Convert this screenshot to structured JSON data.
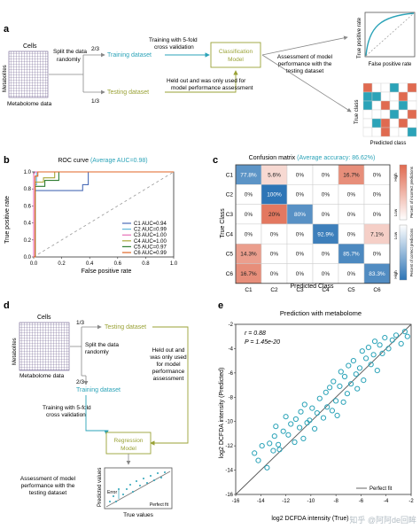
{
  "panel_letters": {
    "a": "a",
    "b": "b",
    "c": "c",
    "d": "d",
    "e": "e"
  },
  "panel_a": {
    "cells_label": "Cells",
    "metabolites_label": "Metabolites",
    "metabolome_label": "Metabolome data",
    "split_label_1": "Split the data",
    "split_label_2": "randomly",
    "frac_train": "2/3",
    "frac_test": "1/3",
    "training_dataset": "Training dataset",
    "testing_dataset": "Testing dataset",
    "cv_label_1": "Training with 5-fold",
    "cv_label_2": "cross validation",
    "model_label_1": "Classification",
    "model_label_2": "Model",
    "heldout_label_1": "Held out and was only used for",
    "heldout_label_2": "model performance assessment",
    "assess_label_1": "Assessment of model",
    "assess_label_2": "performance with the",
    "assess_label_3": "testing dataset",
    "roc_icon_ylabel": "True positive rate",
    "roc_icon_xlabel": "False positive rate",
    "cm_icon_ylabel": "True class",
    "cm_icon_xlabel": "Predicted class"
  },
  "panel_b": {
    "title_prefix": "ROC curve",
    "title_highlight": "(Average AUC=0.98)",
    "xlabel": "False positive rate",
    "ylabel": "True positive rate",
    "xticks": [
      "0.0",
      "0.2",
      "0.4",
      "0.6",
      "0.8",
      "1.0"
    ],
    "yticks": [
      "0.0",
      "0.2",
      "0.4",
      "0.6",
      "0.8",
      "1.0"
    ],
    "legend": [
      "C1 AUC=0.94",
      "C2 AUC=0.99",
      "C3 AUC=1.00",
      "C4 AUC=1.00",
      "C5 AUC=0.97",
      "C6 AUC=0.99"
    ]
  },
  "panel_c": {
    "title_prefix": "Confusion matrix",
    "title_highlight": "(Average accuracy: 86.62%)",
    "xlabel": "Predicted Class",
    "ylabel": "True Class",
    "classes": [
      "C1",
      "C2",
      "C3",
      "C4",
      "C5",
      "C6"
    ],
    "colorbar_high": "High",
    "colorbar_low": "Low",
    "colorbar_top_label": "Percent of incorrect predictions",
    "colorbar_bottom_label": "Percent of correct predictions"
  },
  "panel_d": {
    "cells_label": "Cells",
    "metabolites_label": "Metabolites",
    "metabolome_label": "Metabolome data",
    "frac_test": "1/3",
    "frac_train": "2/3",
    "split_label_1": "Split the data",
    "split_label_2": "randomly",
    "testing_dataset": "Testing dataset",
    "training_dataset": "Training dataset",
    "heldout_label_1": "Held out and",
    "heldout_label_2": "was only used",
    "heldout_label_3": "for model",
    "heldout_label_4": "performance",
    "heldout_label_5": "assessment",
    "cv_label_1": "Training with 5-fold",
    "cv_label_2": "cross validation",
    "model_label_1": "Regression",
    "model_label_2": "Model",
    "assess_label_1": "Assessment of model",
    "assess_label_2": "performance with the",
    "assess_label_3": "testing dataset",
    "icon_ylabel": "Predicted values",
    "icon_xlabel": "True values",
    "icon_error": "Error",
    "icon_perfect": "Perfect fit"
  },
  "panel_e": {
    "title": "Prediction with metabolome",
    "r_label": "r = 0.88",
    "p_label": "P = 1.45e-20",
    "xlabel": "log2 DCFDA intensity (True)",
    "ylabel": "log2 DCFDA intensity (Predicted)",
    "legend": "Perfect fit",
    "watermark": "知乎 @阿阿de回眸",
    "xticks": [
      "-16",
      "-14",
      "-12",
      "-10",
      "-8",
      "-6",
      "-4",
      "-2"
    ],
    "yticks": [
      "-16",
      "-14",
      "-12",
      "-10",
      "-8",
      "-6",
      "-4",
      "-2"
    ]
  },
  "colors": {
    "teal": "#2ba3b8",
    "olive": "#9aa236",
    "c1": "#4b6cb7",
    "c2": "#63b7d8",
    "c3": "#e66fb8",
    "c4": "#a8a838",
    "c5": "#2e7d32",
    "c6": "#e06626",
    "cm_red": "#e06a50",
    "cm_blue": "#2e75b6"
  },
  "chart_data": [
    {
      "type": "line",
      "title": "ROC curve (Average AUC=0.98)",
      "xlabel": "False positive rate",
      "ylabel": "True positive rate",
      "xlim": [
        0,
        1
      ],
      "ylim": [
        0,
        1
      ],
      "legend_position": "bottom-right",
      "series": [
        {
          "name": "C1 AUC=0.94",
          "color": "#4b6cb7",
          "x": [
            0,
            0.01,
            0.01,
            0.35,
            0.35,
            0.39,
            0.39,
            1.0
          ],
          "y": [
            0,
            0,
            0.78,
            0.78,
            0.85,
            0.85,
            1.0,
            1.0
          ]
        },
        {
          "name": "C2 AUC=0.99",
          "color": "#63b7d8",
          "x": [
            0,
            0.01,
            0.01,
            0.02,
            0.02,
            1.0
          ],
          "y": [
            0,
            0,
            0.85,
            0.85,
            1.0,
            1.0
          ]
        },
        {
          "name": "C3 AUC=1.00",
          "color": "#e66fb8",
          "x": [
            0,
            0,
            0.01,
            1.0
          ],
          "y": [
            0,
            0.97,
            1.0,
            1.0
          ]
        },
        {
          "name": "C4 AUC=1.00",
          "color": "#a8a838",
          "x": [
            0,
            0.01,
            0.01,
            0.07,
            0.07,
            0.15,
            0.15,
            1.0
          ],
          "y": [
            0,
            0,
            0.88,
            0.88,
            0.93,
            0.93,
            1.0,
            1.0
          ]
        },
        {
          "name": "C5 AUC=0.97",
          "color": "#2e7d32",
          "x": [
            0,
            0.01,
            0.01,
            0.08,
            0.08,
            0.18,
            0.18,
            1.0
          ],
          "y": [
            0,
            0,
            0.83,
            0.83,
            0.9,
            0.9,
            1.0,
            1.0
          ]
        },
        {
          "name": "C6 AUC=0.99",
          "color": "#e06626",
          "x": [
            0,
            0.01,
            0.01,
            0.03,
            0.03,
            1.0
          ],
          "y": [
            0,
            0,
            0.95,
            0.95,
            1.0,
            1.0
          ]
        }
      ]
    },
    {
      "type": "heatmap",
      "title": "Confusion matrix (Average accuracy: 86.62%)",
      "xlabel": "Predicted Class",
      "ylabel": "True Class",
      "rows": [
        "C1",
        "C2",
        "C3",
        "C4",
        "C5",
        "C6"
      ],
      "cols": [
        "C1",
        "C2",
        "C3",
        "C4",
        "C5",
        "C6"
      ],
      "values": [
        [
          "77.8%",
          "5.6%",
          "0%",
          "0%",
          "16.7%",
          "0%"
        ],
        [
          "0%",
          "100%",
          "0%",
          "0%",
          "0%",
          "0%"
        ],
        [
          "0%",
          "20%",
          "80%",
          "0%",
          "0%",
          "0%"
        ],
        [
          "0%",
          "0%",
          "0%",
          "92.9%",
          "0%",
          "7.1%"
        ],
        [
          "14.3%",
          "0%",
          "0%",
          "0%",
          "85.7%",
          "0%"
        ],
        [
          "16.7%",
          "0%",
          "0%",
          "0%",
          "0%",
          "83.3%"
        ]
      ],
      "fill_pct": [
        [
          77.8,
          5.6,
          0,
          0,
          16.7,
          0
        ],
        [
          0,
          100,
          0,
          0,
          0,
          0
        ],
        [
          0,
          20,
          80,
          0,
          0,
          0
        ],
        [
          0,
          0,
          0,
          92.9,
          0,
          7.1
        ],
        [
          14.3,
          0,
          0,
          0,
          85.7,
          0
        ],
        [
          16.7,
          0,
          0,
          0,
          0,
          83.3
        ]
      ]
    },
    {
      "type": "scatter",
      "title": "Prediction with metabolome",
      "xlabel": "log2 DCFDA intensity (True)",
      "ylabel": "log2 DCFDA intensity (Predicted)",
      "xlim": [
        -16,
        -2
      ],
      "ylim": [
        -16,
        -2
      ],
      "legend_position": "bottom-right",
      "series": [
        {
          "name": "Perfect fit",
          "type": "line",
          "x": [
            -16,
            -2
          ],
          "y": [
            -16,
            -2
          ]
        },
        {
          "name": "points",
          "x": [
            -14.5,
            -14.2,
            -13.9,
            -13.5,
            -13.3,
            -13.0,
            -12.9,
            -12.8,
            -12.6,
            -12.5,
            -12.2,
            -12.0,
            -11.8,
            -11.6,
            -11.3,
            -11.2,
            -10.9,
            -10.8,
            -10.6,
            -10.5,
            -10.3,
            -10.1,
            -9.9,
            -9.7,
            -9.5,
            -9.3,
            -9.0,
            -8.8,
            -8.7,
            -8.5,
            -8.3,
            -8.2,
            -8.0,
            -7.9,
            -7.7,
            -7.6,
            -7.4,
            -7.3,
            -7.1,
            -7.0,
            -6.8,
            -6.6,
            -6.4,
            -6.3,
            -6.1,
            -5.9,
            -5.8,
            -5.6,
            -5.4,
            -5.2,
            -5.0,
            -4.9,
            -4.7,
            -4.5,
            -4.3,
            -4.1,
            -3.8,
            -3.5,
            -3.2,
            -2.8,
            -2.5,
            -2.3
          ],
          "y": [
            -12.6,
            -13.2,
            -12.0,
            -13.8,
            -11.8,
            -12.4,
            -11.2,
            -10.4,
            -11.9,
            -12.3,
            -10.8,
            -9.6,
            -11.1,
            -10.2,
            -11.7,
            -9.8,
            -10.5,
            -9.2,
            -11.4,
            -8.6,
            -10.1,
            -9.9,
            -8.9,
            -10.6,
            -9.3,
            -8.1,
            -9.7,
            -7.6,
            -8.8,
            -7.2,
            -9.1,
            -6.7,
            -8.3,
            -9.5,
            -7.1,
            -5.9,
            -8.4,
            -6.3,
            -7.7,
            -5.4,
            -6.9,
            -5.0,
            -6.1,
            -7.3,
            -5.6,
            -4.2,
            -6.6,
            -4.8,
            -3.9,
            -5.3,
            -4.5,
            -3.4,
            -5.8,
            -3.7,
            -4.4,
            -3.1,
            -4.0,
            -3.3,
            -2.9,
            -3.6,
            -2.6,
            -3.0
          ]
        }
      ]
    }
  ]
}
